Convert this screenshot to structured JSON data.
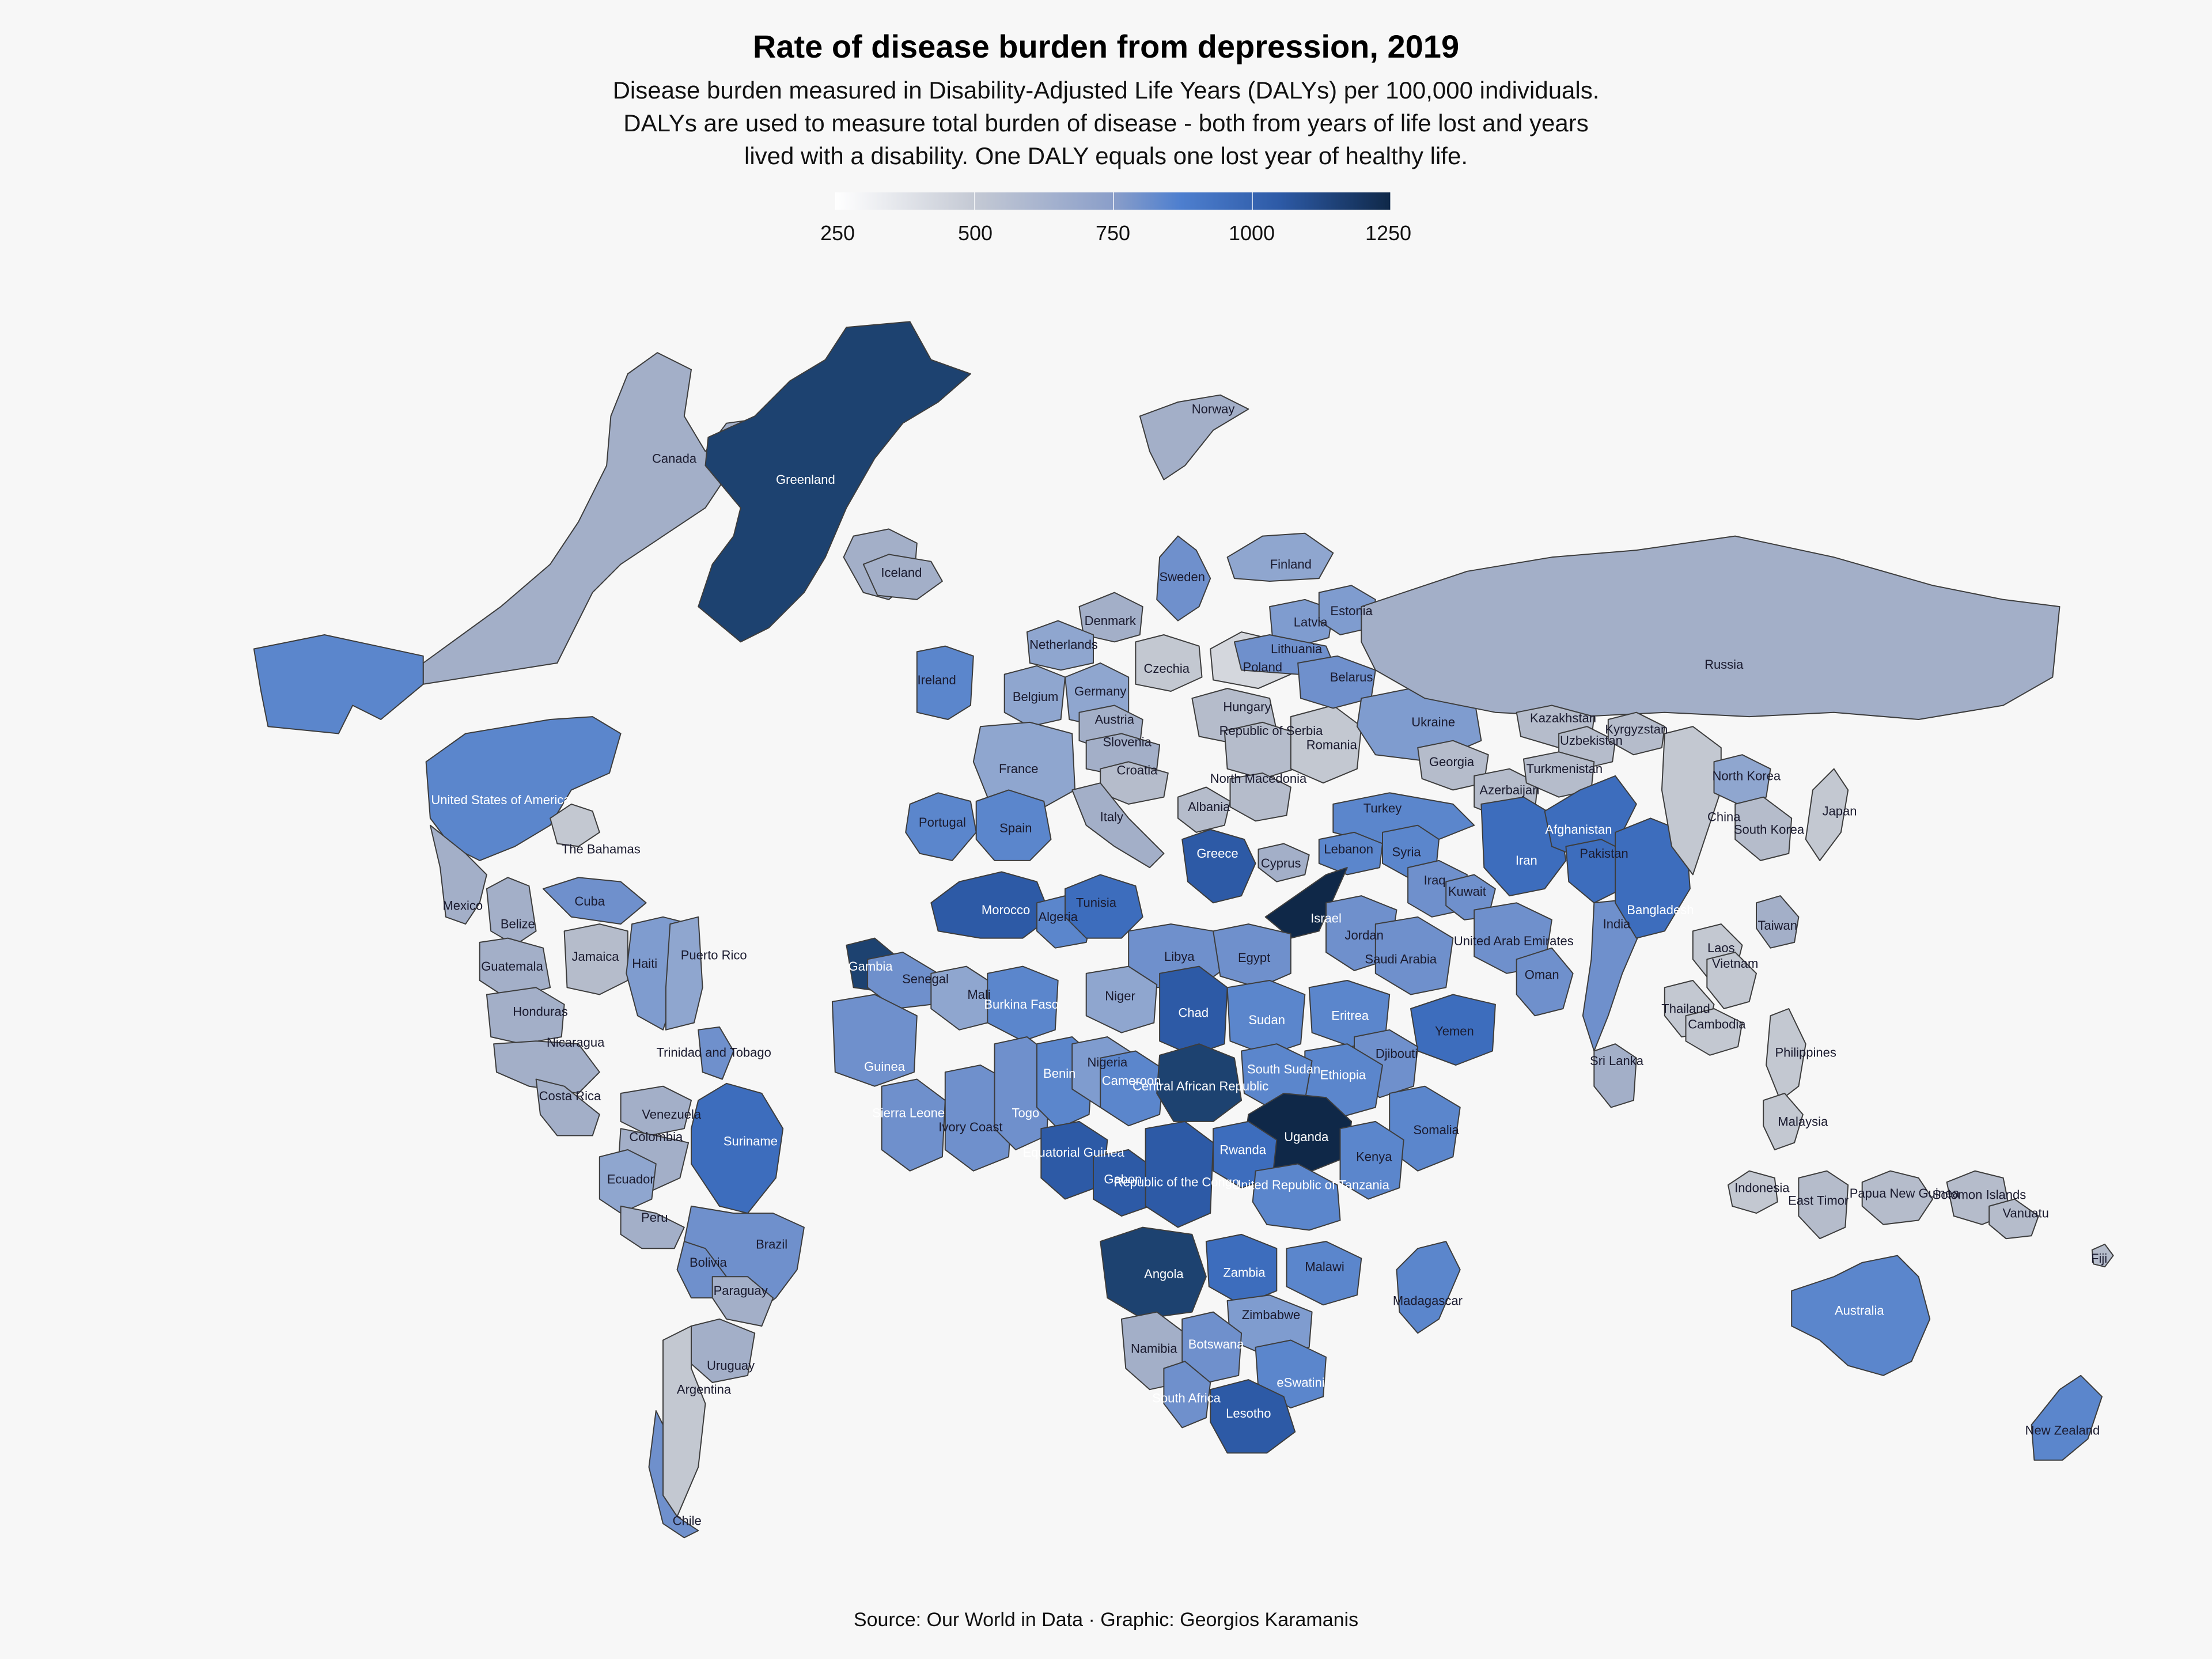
{
  "title": "Rate of disease burden from depression, 2019",
  "subtitle": [
    "Disease burden measured in Disability-Adjusted Life Years (DALYs) per 100,000 individuals.",
    "DALYs are used to measure total burden of disease - both from years of life lost and years",
    "lived with a disability. One DALY equals one lost year of healthy life."
  ],
  "legend": {
    "min": 250,
    "max": 1250,
    "ticks": [
      "250",
      "500",
      "750",
      "1000",
      "1250"
    ],
    "colors": [
      "#ffffff",
      "#c4c9d4",
      "#8a9ec9",
      "#4e7fcf",
      "#2d5aa6",
      "#0f2848"
    ]
  },
  "source": "Source: Our World in Data · Graphic: Georgios Karamanis",
  "countries": [
    {
      "name": "Canada",
      "color": "#a3afc8"
    },
    {
      "name": "Greenland",
      "color": "#1d4270"
    },
    {
      "name": "Iceland",
      "color": "#a3afc8"
    },
    {
      "name": "Norway",
      "color": "#a3afc8"
    },
    {
      "name": "United States of America",
      "color": "#5b86cc"
    },
    {
      "name": "Mexico",
      "color": "#a3afc8"
    },
    {
      "name": "Cuba",
      "color": "#6f90cc"
    },
    {
      "name": "The Bahamas",
      "color": "#c3c8d1"
    },
    {
      "name": "Jamaica",
      "color": "#b5bccb"
    },
    {
      "name": "Haiti",
      "color": "#7f9ccf"
    },
    {
      "name": "Puerto Rico",
      "color": "#8fa6cf"
    },
    {
      "name": "Belize",
      "color": "#a3afc8"
    },
    {
      "name": "Guatemala",
      "color": "#a3afc8"
    },
    {
      "name": "Honduras",
      "color": "#a3afc8"
    },
    {
      "name": "Nicaragua",
      "color": "#a3afc8"
    },
    {
      "name": "Costa Rica",
      "color": "#a3afc8"
    },
    {
      "name": "Trinidad and Tobago",
      "color": "#6f90cc"
    },
    {
      "name": "Venezuela",
      "color": "#a3afc8"
    },
    {
      "name": "Colombia",
      "color": "#a3afc8"
    },
    {
      "name": "Suriname",
      "color": "#3d6dbd"
    },
    {
      "name": "Ecuador",
      "color": "#8fa6cf"
    },
    {
      "name": "Peru",
      "color": "#a3afc8"
    },
    {
      "name": "Brazil",
      "color": "#6f90cc"
    },
    {
      "name": "Bolivia",
      "color": "#6f90cc"
    },
    {
      "name": "Paraguay",
      "color": "#a3afc8"
    },
    {
      "name": "Uruguay",
      "color": "#a3afc8"
    },
    {
      "name": "Argentina",
      "color": "#c3c8d1"
    },
    {
      "name": "Chile",
      "color": "#6f90cc"
    },
    {
      "name": "Ireland",
      "color": "#5b86cc"
    },
    {
      "name": "Sweden",
      "color": "#6f90cc"
    },
    {
      "name": "Finland",
      "color": "#8fa6cf"
    },
    {
      "name": "Denmark",
      "color": "#a3afc8"
    },
    {
      "name": "Netherlands",
      "color": "#8fa6cf"
    },
    {
      "name": "Belgium",
      "color": "#8fa6cf"
    },
    {
      "name": "Germany",
      "color": "#8fa6cf"
    },
    {
      "name": "France",
      "color": "#8fa6cf"
    },
    {
      "name": "Czechia",
      "color": "#c3c8d1"
    },
    {
      "name": "Austria",
      "color": "#a3afc8"
    },
    {
      "name": "Slovenia",
      "color": "#a3afc8"
    },
    {
      "name": "Croatia",
      "color": "#b5bccb"
    },
    {
      "name": "Hungary",
      "color": "#b5bccb"
    },
    {
      "name": "Poland",
      "color": "#d4d7dd"
    },
    {
      "name": "Republic of Serbia",
      "color": "#b5bccb"
    },
    {
      "name": "Romania",
      "color": "#c3c8d1"
    },
    {
      "name": "Albania",
      "color": "#b5bccb"
    },
    {
      "name": "North Macedonia",
      "color": "#b5bccb"
    },
    {
      "name": "Italy",
      "color": "#a3afc8"
    },
    {
      "name": "Greece",
      "color": "#2d5aa6"
    },
    {
      "name": "Portugal",
      "color": "#5b86cc"
    },
    {
      "name": "Spain",
      "color": "#5b86cc"
    },
    {
      "name": "Latvia",
      "color": "#7f9ccf"
    },
    {
      "name": "Estonia",
      "color": "#7f9ccf"
    },
    {
      "name": "Lithuania",
      "color": "#6f90cc"
    },
    {
      "name": "Belarus",
      "color": "#6f90cc"
    },
    {
      "name": "Ukraine",
      "color": "#7f9ccf"
    },
    {
      "name": "Russia",
      "color": "#a3afc8"
    },
    {
      "name": "Georgia",
      "color": "#b5bccb"
    },
    {
      "name": "Azerbaijan",
      "color": "#b5bccb"
    },
    {
      "name": "Turkey",
      "color": "#5b86cc"
    },
    {
      "name": "Cyprus",
      "color": "#a3afc8"
    },
    {
      "name": "Lebanon",
      "color": "#5b86cc"
    },
    {
      "name": "Syria",
      "color": "#5b86cc"
    },
    {
      "name": "Israel",
      "color": "#0f2848"
    },
    {
      "name": "Jordan",
      "color": "#6f90cc"
    },
    {
      "name": "Iraq",
      "color": "#6f90cc"
    },
    {
      "name": "Kuwait",
      "color": "#6f90cc"
    },
    {
      "name": "Saudi Arabia",
      "color": "#6f90cc"
    },
    {
      "name": "United Arab Emirates",
      "color": "#6f90cc"
    },
    {
      "name": "Oman",
      "color": "#6f90cc"
    },
    {
      "name": "Yemen",
      "color": "#3d6dbd"
    },
    {
      "name": "Iran",
      "color": "#3d6dbd"
    },
    {
      "name": "Kazakhstan",
      "color": "#b5bccb"
    },
    {
      "name": "Uzbekistan",
      "color": "#b5bccb"
    },
    {
      "name": "Kyrgyzstan",
      "color": "#b5bccb"
    },
    {
      "name": "Turkmenistan",
      "color": "#b5bccb"
    },
    {
      "name": "Afghanistan",
      "color": "#3d6dbd"
    },
    {
      "name": "Pakistan",
      "color": "#3d6dbd"
    },
    {
      "name": "India",
      "color": "#6f90cc"
    },
    {
      "name": "Bangladesh",
      "color": "#3d6dbd"
    },
    {
      "name": "Sri Lanka",
      "color": "#a3afc8"
    },
    {
      "name": "China",
      "color": "#c3c8d1"
    },
    {
      "name": "North Korea",
      "color": "#8fa6cf"
    },
    {
      "name": "South Korea",
      "color": "#b5bccb"
    },
    {
      "name": "Japan",
      "color": "#c3c8d1"
    },
    {
      "name": "Taiwan",
      "color": "#a3afc8"
    },
    {
      "name": "Laos",
      "color": "#c3c8d1"
    },
    {
      "name": "Vietnam",
      "color": "#c3c8d1"
    },
    {
      "name": "Thailand",
      "color": "#c3c8d1"
    },
    {
      "name": "Cambodia",
      "color": "#c3c8d1"
    },
    {
      "name": "Philippines",
      "color": "#c3c8d1"
    },
    {
      "name": "Malaysia",
      "color": "#c3c8d1"
    },
    {
      "name": "Indonesia",
      "color": "#c3c8d1"
    },
    {
      "name": "East Timor",
      "color": "#b5bccb"
    },
    {
      "name": "Papua New Guinea",
      "color": "#b5bccb"
    },
    {
      "name": "Solomon Islands",
      "color": "#b5bccb"
    },
    {
      "name": "Vanuatu",
      "color": "#b5bccb"
    },
    {
      "name": "Fiji",
      "color": "#b5bccb"
    },
    {
      "name": "Australia",
      "color": "#5b86cc"
    },
    {
      "name": "New Zealand",
      "color": "#5b86cc"
    },
    {
      "name": "Morocco",
      "color": "#2d5aa6"
    },
    {
      "name": "Algeria",
      "color": "#5b86cc"
    },
    {
      "name": "Tunisia",
      "color": "#3d6dbd"
    },
    {
      "name": "Libya",
      "color": "#6f90cc"
    },
    {
      "name": "Egypt",
      "color": "#6f90cc"
    },
    {
      "name": "Gambia",
      "color": "#1d4270"
    },
    {
      "name": "Senegal",
      "color": "#6f90cc"
    },
    {
      "name": "Mali",
      "color": "#8fa6cf"
    },
    {
      "name": "Burkina Faso",
      "color": "#5b86cc"
    },
    {
      "name": "Niger",
      "color": "#8fa6cf"
    },
    {
      "name": "Chad",
      "color": "#2d5aa6"
    },
    {
      "name": "Sudan",
      "color": "#5b86cc"
    },
    {
      "name": "Eritrea",
      "color": "#5b86cc"
    },
    {
      "name": "Djibouti",
      "color": "#6f90cc"
    },
    {
      "name": "Ethiopia",
      "color": "#5b86cc"
    },
    {
      "name": "South Sudan",
      "color": "#5b86cc"
    },
    {
      "name": "Somalia",
      "color": "#5b86cc"
    },
    {
      "name": "Guinea",
      "color": "#6f90cc"
    },
    {
      "name": "Sierra Leone",
      "color": "#6f90cc"
    },
    {
      "name": "Ivory Coast",
      "color": "#6f90cc"
    },
    {
      "name": "Togo",
      "color": "#6f90cc"
    },
    {
      "name": "Benin",
      "color": "#5b86cc"
    },
    {
      "name": "Nigeria",
      "color": "#7f9ccf"
    },
    {
      "name": "Cameroon",
      "color": "#5b86cc"
    },
    {
      "name": "Central African Republic",
      "color": "#1d4270"
    },
    {
      "name": "Equatorial Guinea",
      "color": "#2d5aa6"
    },
    {
      "name": "Gabon",
      "color": "#2d5aa6"
    },
    {
      "name": "Republic of the Congo",
      "color": "#2d5aa6"
    },
    {
      "name": "Uganda",
      "color": "#0f2848"
    },
    {
      "name": "Rwanda",
      "color": "#3d6dbd"
    },
    {
      "name": "Kenya",
      "color": "#5b86cc"
    },
    {
      "name": "United Republic of Tanzania",
      "color": "#5b86cc"
    },
    {
      "name": "Angola",
      "color": "#1d4270"
    },
    {
      "name": "Zambia",
      "color": "#3d6dbd"
    },
    {
      "name": "Malawi",
      "color": "#5b86cc"
    },
    {
      "name": "Madagascar",
      "color": "#5b86cc"
    },
    {
      "name": "Zimbabwe",
      "color": "#7f9ccf"
    },
    {
      "name": "Namibia",
      "color": "#a3afc8"
    },
    {
      "name": "Botswana",
      "color": "#6f90cc"
    },
    {
      "name": "eSwatini",
      "color": "#5b86cc"
    },
    {
      "name": "South Africa",
      "color": "#6f90cc"
    },
    {
      "name": "Lesotho",
      "color": "#2d5aa6"
    }
  ]
}
